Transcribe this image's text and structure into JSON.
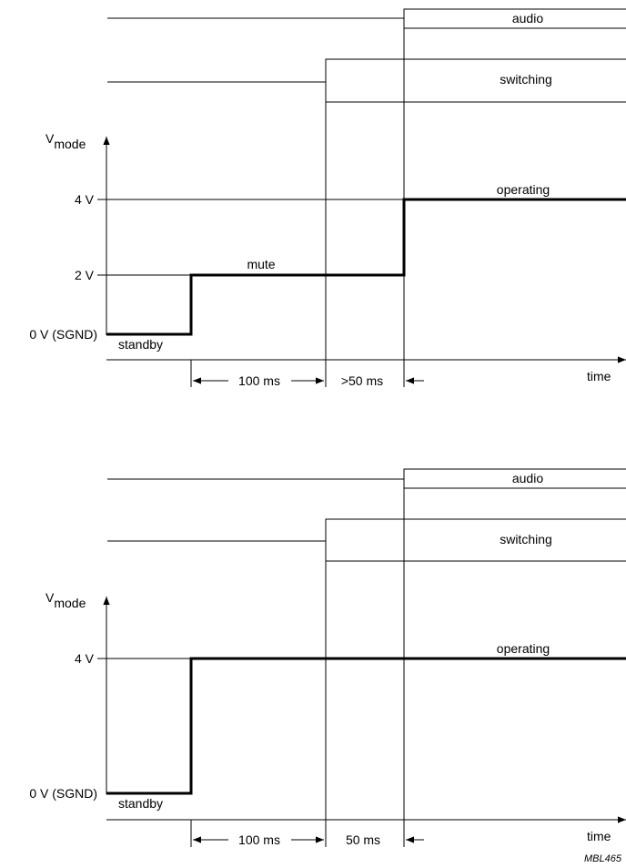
{
  "diagram_top": {
    "signals": {
      "audio": "audio",
      "switching": "switching"
    },
    "axis": {
      "v_main": "V",
      "v_sub": "mode",
      "x_label": "time"
    },
    "levels": {
      "v4": "4 V",
      "v2": "2 V",
      "v0": "0 V (SGND)"
    },
    "states": {
      "standby": "standby",
      "mute": "mute",
      "operating": "operating"
    },
    "intervals": {
      "first": "100 ms",
      "second": ">50 ms"
    }
  },
  "diagram_bottom": {
    "signals": {
      "audio": "audio",
      "switching": "switching"
    },
    "axis": {
      "v_main": "V",
      "v_sub": "mode",
      "x_label": "time"
    },
    "levels": {
      "v4": "4 V",
      "v0": "0 V (SGND)"
    },
    "states": {
      "standby": "standby",
      "operating": "operating"
    },
    "intervals": {
      "first": "100 ms",
      "second": "50 ms"
    }
  },
  "reference_code": "MBL465"
}
